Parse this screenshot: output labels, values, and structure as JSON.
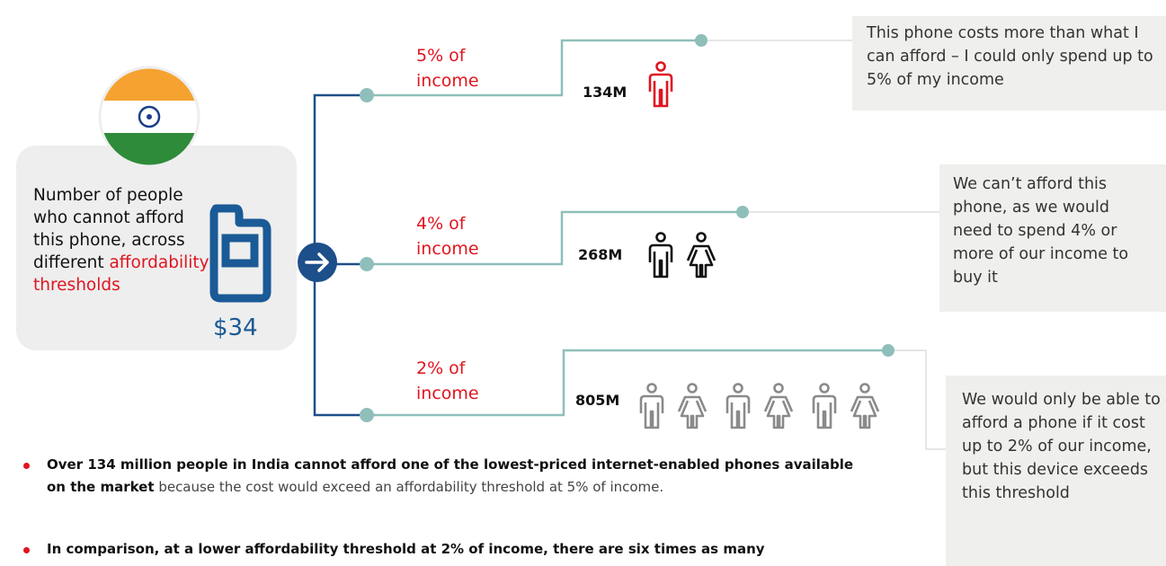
{
  "left": {
    "text": "Number of people who cannot afford this phone, across different",
    "highlight": "affordability thresholds",
    "price": "$34"
  },
  "branches": [
    {
      "label": "5% of income",
      "count": "134M",
      "quote": "This phone costs more than what I can afford – I could only spend up to 5% of my income"
    },
    {
      "label": "4% of income",
      "count": "268M",
      "quote": "We can’t afford this phone, as we would need to spend 4% or more of our income to buy it"
    },
    {
      "label": "2% of income",
      "count": "805M",
      "quote": "We would only be able to afford a phone if it cost up to 2% of our income, but this device exceeds this threshold"
    }
  ],
  "bullets": [
    {
      "bold": "Over 134 million people in India cannot afford one of the lowest-priced internet-enabled phones available on the market",
      "text": "because the cost would exceed an affordability threshold at 5% of income."
    },
    {
      "bold": "In comparison, at a lower affordability threshold at 2% of income, there are six times as many",
      "text": ""
    }
  ]
}
